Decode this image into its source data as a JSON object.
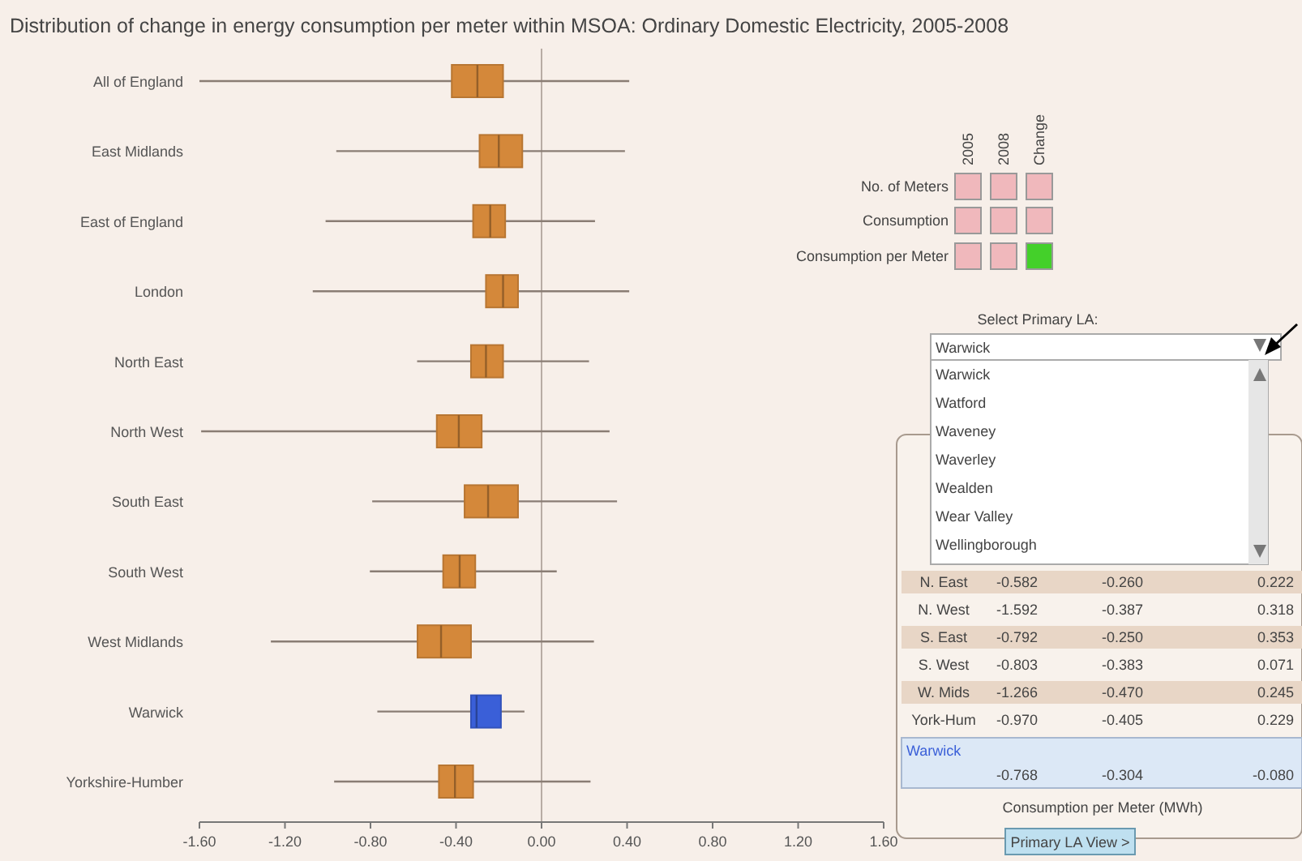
{
  "chart_data": [
    {
      "type": "box",
      "orientation": "horizontal",
      "title": "Distribution of change in energy consumption per meter within MSOA: Ordinary Domestic Electricity, 2005-2008",
      "categories": [
        "All of England",
        "East Midlands",
        "East of England",
        "London",
        "North East",
        "North West",
        "South East",
        "South West",
        "West Midlands",
        "Warwick",
        "Yorkshire-Humber"
      ],
      "boxes": [
        {
          "low": -1.6,
          "q1": -0.42,
          "median": -0.3,
          "q3": -0.18,
          "high": 0.41
        },
        {
          "low": -0.96,
          "q1": -0.29,
          "median": -0.2,
          "q3": -0.09,
          "high": 0.39
        },
        {
          "low": -1.01,
          "q1": -0.32,
          "median": -0.24,
          "q3": -0.17,
          "high": 0.25
        },
        {
          "low": -1.07,
          "q1": -0.26,
          "median": -0.18,
          "q3": -0.11,
          "high": 0.41
        },
        {
          "low": -0.582,
          "q1": -0.33,
          "median": -0.26,
          "q3": -0.18,
          "high": 0.222
        },
        {
          "low": -1.592,
          "q1": -0.49,
          "median": -0.387,
          "q3": -0.28,
          "high": 0.318
        },
        {
          "low": -0.792,
          "q1": -0.36,
          "median": -0.25,
          "q3": -0.11,
          "high": 0.353
        },
        {
          "low": -0.803,
          "q1": -0.46,
          "median": -0.383,
          "q3": -0.31,
          "high": 0.071
        },
        {
          "low": -1.266,
          "q1": -0.58,
          "median": -0.47,
          "q3": -0.33,
          "high": 0.245
        },
        {
          "low": -0.768,
          "q1": -0.33,
          "median": -0.304,
          "q3": -0.19,
          "high": -0.08
        },
        {
          "low": -0.97,
          "q1": -0.48,
          "median": -0.405,
          "q3": -0.32,
          "high": 0.229
        }
      ],
      "colors": [
        "#d4883a",
        "#d4883a",
        "#d4883a",
        "#d4883a",
        "#d4883a",
        "#d4883a",
        "#d4883a",
        "#d4883a",
        "#d4883a",
        "#3a5fd8",
        "#d4883a"
      ],
      "xlim": [
        -1.6,
        1.6
      ],
      "xticks": [
        {
          "value": -1.6,
          "label": "-1.60"
        },
        {
          "value": -1.2,
          "label": "-1.20"
        },
        {
          "value": -0.8,
          "label": "-0.80"
        },
        {
          "value": -0.4,
          "label": "-0.40"
        },
        {
          "value": 0,
          "label": "0.00"
        },
        {
          "value": 0.4,
          "label": "0.40"
        },
        {
          "value": 0.8,
          "label": "0.80"
        },
        {
          "value": 1.2,
          "label": "1.20"
        },
        {
          "value": 1.6,
          "label": "1.60"
        }
      ],
      "ref_lines": [
        {
          "axis": "x",
          "value": 0,
          "color": "#b8aca4"
        }
      ],
      "grid": false
    },
    {
      "type": "other",
      "annotations": [
        "2005",
        "2008",
        "Change",
        "No. of Meters",
        "Consumption",
        "Consumption per Meter",
        "Select Primary LA:",
        "Warwick",
        "Warwick",
        "Watford",
        "Waveney",
        "Waverley",
        "Wealden",
        "Wear Valley",
        "Wellingborough",
        "N. East",
        "-0.582",
        "-0.260",
        "0.222",
        "N. West",
        "-1.592",
        "-0.387",
        "0.318",
        "S. East",
        "-0.792",
        "-0.250",
        "0.353",
        "S. West",
        "-0.803",
        "-0.383",
        "0.071",
        "W. Mids",
        "-1.266",
        "-0.470",
        "0.245",
        "York-Hum",
        "-0.970",
        "-0.405",
        "0.229",
        "Warwick",
        "-0.768",
        "-0.304",
        "-0.080",
        "Consumption per Meter (MWh)",
        "Primary LA View >"
      ]
    }
  ]
}
